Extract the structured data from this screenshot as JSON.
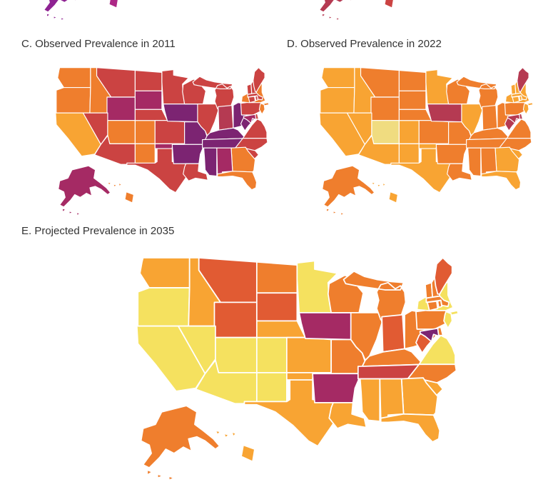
{
  "figure": {
    "background": "#ffffff"
  },
  "palette": {
    "Y": "#F5E15F",
    "YP": "#F0DC80",
    "A": "#F8A433",
    "O": "#EF7E2D",
    "RO": "#E15B33",
    "R": "#CB4342",
    "M": "#B53A52",
    "G": "#A52A64",
    "P": "#7C2472",
    "V": "#8E2292",
    "GP": "#AC2786"
  },
  "chart_data": [
    {
      "id": "A",
      "type": "choropleth",
      "region": "usa-states",
      "title": "",
      "states": {
        "WA": "P",
        "OR": "P",
        "CA": "P",
        "NV": "P",
        "ID": "P",
        "MT": "P",
        "WY": "P",
        "UT": "P",
        "CO": "P",
        "AZ": "P",
        "NM": "P",
        "ND": "P",
        "SD": "P",
        "NE": "P",
        "KS": "P",
        "OK": "P",
        "TX": "P",
        "MN": "P",
        "IA": "P",
        "MO": "P",
        "AR": "P",
        "LA": "P",
        "WI": "P",
        "IL": "P",
        "MI": "P",
        "IN": "P",
        "OH": "P",
        "KY": "P",
        "TN": "P",
        "MS": "P",
        "AL": "P",
        "GA": "P",
        "FL": "P",
        "SC": "P",
        "NC": "P",
        "VA": "P",
        "WV": "P",
        "PA": "P",
        "NY": "P",
        "NJ": "P",
        "DE": "P",
        "MD": "P",
        "VT": "P",
        "NH": "P",
        "ME": "P",
        "MA": "P",
        "CT": "P",
        "RI": "P",
        "AK": "V",
        "HI": "GP"
      }
    },
    {
      "id": "B",
      "type": "choropleth",
      "region": "usa-states",
      "title": "",
      "states": {
        "WA": "R",
        "OR": "R",
        "CA": "R",
        "NV": "R",
        "ID": "R",
        "MT": "R",
        "WY": "R",
        "UT": "R",
        "CO": "R",
        "AZ": "R",
        "NM": "R",
        "ND": "R",
        "SD": "R",
        "NE": "R",
        "KS": "R",
        "OK": "R",
        "TX": "R",
        "MN": "R",
        "IA": "R",
        "MO": "R",
        "AR": "R",
        "LA": "R",
        "WI": "R",
        "IL": "R",
        "MI": "R",
        "IN": "R",
        "OH": "R",
        "KY": "R",
        "TN": "R",
        "MS": "R",
        "AL": "R",
        "GA": "R",
        "FL": "R",
        "SC": "R",
        "NC": "R",
        "VA": "R",
        "WV": "R",
        "PA": "R",
        "NY": "R",
        "NJ": "R",
        "DE": "R",
        "MD": "R",
        "VT": "R",
        "NH": "R",
        "ME": "R",
        "MA": "R",
        "CT": "R",
        "RI": "R",
        "AK": "M",
        "HI": "R"
      }
    },
    {
      "id": "C",
      "type": "choropleth",
      "region": "usa-states",
      "title": "C. Observed Prevalence in 2011",
      "states": {
        "WA": "O",
        "OR": "O",
        "CA": "A",
        "NV": "R",
        "ID": "O",
        "MT": "R",
        "WY": "G",
        "UT": "O",
        "CO": "O",
        "AZ": "R",
        "NM": "O",
        "ND": "R",
        "SD": "G",
        "NE": "R",
        "KS": "R",
        "OK": "G",
        "TX": "R",
        "MN": "R",
        "IA": "P",
        "MO": "P",
        "AR": "P",
        "LA": "R",
        "WI": "R",
        "IL": "R",
        "MI": "R",
        "IN": "M",
        "OH": "P",
        "KY": "P",
        "TN": "P",
        "MS": "P",
        "AL": "G",
        "GA": "O",
        "FL": "O",
        "SC": "R",
        "NC": "R",
        "VA": "R",
        "WV": "P",
        "PA": "R",
        "NY": "O",
        "NJ": "O",
        "DE": "R",
        "MD": "G",
        "VT": "R",
        "NH": "R",
        "ME": "R",
        "MA": "R",
        "CT": "R",
        "RI": "R",
        "AK": "G",
        "HI": "O"
      }
    },
    {
      "id": "D",
      "type": "choropleth",
      "region": "usa-states",
      "title": "D. Observed Prevalence in 2022",
      "states": {
        "WA": "A",
        "OR": "A",
        "CA": "A",
        "NV": "A",
        "ID": "A",
        "MT": "O",
        "WY": "O",
        "UT": "YP",
        "CO": "A",
        "AZ": "A",
        "NM": "A",
        "ND": "O",
        "SD": "O",
        "NE": "O",
        "KS": "O",
        "OK": "A",
        "TX": "A",
        "MN": "A",
        "IA": "M",
        "MO": "O",
        "AR": "O",
        "LA": "O",
        "WI": "O",
        "IL": "A",
        "MI": "O",
        "IN": "O",
        "OH": "O",
        "KY": "O",
        "TN": "O",
        "MS": "O",
        "AL": "O",
        "GA": "A",
        "FL": "A",
        "SC": "A",
        "NC": "O",
        "VA": "O",
        "WV": "M",
        "PA": "O",
        "NY": "A",
        "NJ": "A",
        "DE": "M",
        "MD": "M",
        "VT": "A",
        "NH": "A",
        "ME": "M",
        "MA": "A",
        "CT": "A",
        "RI": "A",
        "AK": "O",
        "HI": "A"
      }
    },
    {
      "id": "E",
      "type": "choropleth",
      "region": "usa-states",
      "title": "E. Projected Prevalence in 2035",
      "states": {
        "WA": "A",
        "OR": "Y",
        "CA": "Y",
        "NV": "Y",
        "ID": "A",
        "MT": "RO",
        "WY": "RO",
        "UT": "Y",
        "CO": "Y",
        "AZ": "Y",
        "NM": "Y",
        "ND": "O",
        "SD": "RO",
        "NE": "A",
        "KS": "A",
        "OK": "A",
        "TX": "A",
        "MN": "Y",
        "IA": "G",
        "MO": "O",
        "AR": "G",
        "LA": "A",
        "WI": "O",
        "IL": "O",
        "MI": "O",
        "IN": "RO",
        "OH": "O",
        "KY": "O",
        "TN": "R",
        "MS": "A",
        "AL": "A",
        "GA": "A",
        "FL": "A",
        "SC": "A",
        "NC": "O",
        "VA": "Y",
        "WV": "RO",
        "PA": "O",
        "NY": "Y",
        "NJ": "Y",
        "DE": "O",
        "MD": "P",
        "VT": "O",
        "NH": "O",
        "ME": "RO",
        "MA": "O",
        "CT": "O",
        "RI": "O",
        "AK": "O",
        "HI": "A"
      }
    }
  ]
}
